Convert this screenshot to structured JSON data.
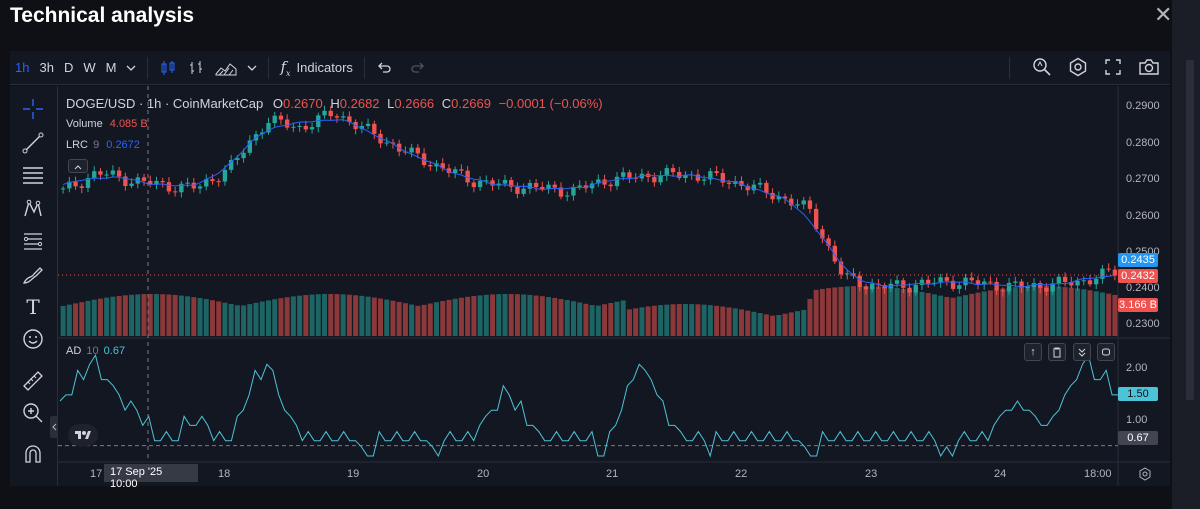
{
  "window": {
    "title": "Technical analysis",
    "close_label": "✕"
  },
  "toolbar": {
    "intervals": [
      "1h",
      "3h",
      "D",
      "W",
      "M"
    ],
    "active_interval": "1h",
    "indicators_label": "Indicators"
  },
  "legend": {
    "symbol_line": "DOGE/USD · 1h · CoinMarketCap",
    "o_label": "O",
    "o_value": "0.2670",
    "h_label": "H",
    "h_value": "0.2682",
    "l_label": "L",
    "l_value": "0.2666",
    "c_label": "C",
    "c_value": "0.2669",
    "change": "−0.0001 (−0.06%)",
    "volume_label": "Volume",
    "volume_value": "4.085 B",
    "lrc_label": "LRC",
    "lrc_period": "9",
    "lrc_value": "0.2672",
    "ad_label": "AD",
    "ad_period": "10",
    "ad_value": "0.67"
  },
  "price_axis": {
    "ticks": [
      "0.2900",
      "0.2800",
      "0.2700",
      "0.2600",
      "0.2500",
      "0.2400",
      "0.2300"
    ],
    "badge_blue": "0.2435",
    "badge_red": "0.2432",
    "badge_volume": "3.166 B"
  },
  "ad_axis": {
    "ticks": [
      "2.00",
      "1.00"
    ],
    "badge_cyan": "1.50",
    "badge_gray": "0.67"
  },
  "time_axis": {
    "labels": [
      "17",
      "18",
      "19",
      "20",
      "21",
      "22",
      "23",
      "24",
      "18:00"
    ],
    "crosshair_label": "17 Sep '25   10:00"
  },
  "colors": {
    "up": "#26a69a",
    "down": "#ef5350",
    "lrc": "#2962ff",
    "ad": "#4dc3d8",
    "bg": "#131722"
  },
  "chart_data": [
    {
      "type": "candlestick",
      "title": "DOGE/USD · 1h · CoinMarketCap",
      "x": [
        "17",
        "18",
        "19",
        "20",
        "21",
        "22",
        "23",
        "24"
      ],
      "close_path": [
        0.265,
        0.27,
        0.268,
        0.2665,
        0.266,
        0.272,
        0.284,
        0.282,
        0.286,
        0.281,
        0.276,
        0.272,
        0.268,
        0.2665,
        0.266,
        0.265,
        0.268,
        0.269,
        0.2695,
        0.269,
        0.267,
        0.264,
        0.26,
        0.242,
        0.2395,
        0.24,
        0.241,
        0.2405,
        0.2395,
        0.24,
        0.241,
        0.2435
      ],
      "ylim": [
        0.228,
        0.291
      ]
    },
    {
      "type": "line",
      "title": "AD 10",
      "values": [
        1.3,
        2.0,
        1.3,
        0.7,
        1.0,
        0.7,
        2.0,
        0.8,
        0.7,
        0.6,
        0.7,
        0.6,
        0.7,
        1.5,
        0.8,
        0.7,
        0.6,
        2.0,
        0.9,
        0.6,
        0.8,
        0.7,
        0.6,
        0.7,
        0.8,
        0.7,
        0.6,
        0.7,
        1.3,
        0.9,
        2.0,
        1.5
      ],
      "ylim": [
        0.5,
        2.3
      ]
    }
  ]
}
